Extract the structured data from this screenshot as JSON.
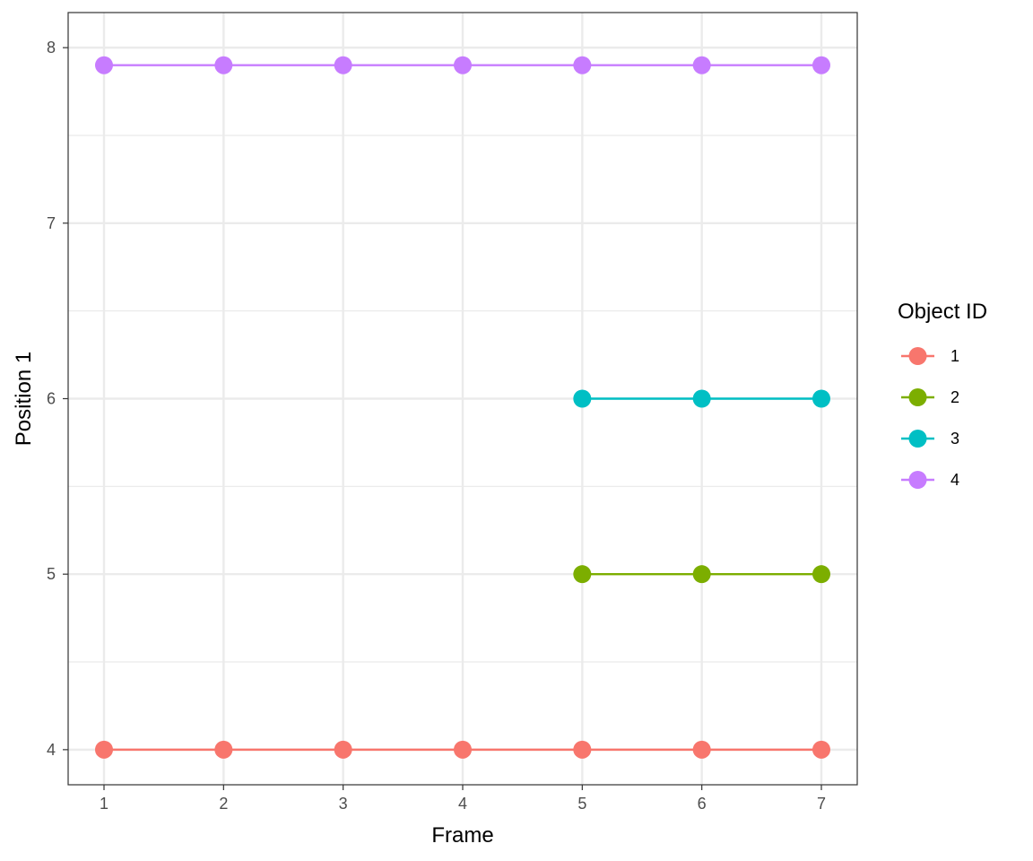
{
  "chart_data": {
    "type": "line",
    "xlabel": "Frame",
    "ylabel": "Position 1",
    "xlim": [
      1,
      7
    ],
    "ylim": [
      4,
      8
    ],
    "x_ticks": [
      1,
      2,
      3,
      4,
      5,
      6,
      7
    ],
    "y_ticks": [
      4,
      5,
      6,
      7,
      8
    ],
    "grid": true,
    "legend": {
      "title": "Object ID",
      "position": "right"
    },
    "series": [
      {
        "name": "1",
        "color": "#F8766D",
        "x": [
          1,
          2,
          3,
          4,
          5,
          6,
          7
        ],
        "y": [
          4,
          4,
          4,
          4,
          4,
          4,
          4
        ]
      },
      {
        "name": "2",
        "color": "#7CAE00",
        "x": [
          5,
          6,
          7
        ],
        "y": [
          5,
          5,
          5
        ]
      },
      {
        "name": "3",
        "color": "#00BFC4",
        "x": [
          5,
          6,
          7
        ],
        "y": [
          6,
          6,
          6
        ]
      },
      {
        "name": "4",
        "color": "#C77CFF",
        "x": [
          1,
          2,
          3,
          4,
          5,
          6,
          7
        ],
        "y": [
          7.9,
          7.9,
          7.9,
          7.9,
          7.9,
          7.9,
          7.9
        ]
      }
    ]
  }
}
